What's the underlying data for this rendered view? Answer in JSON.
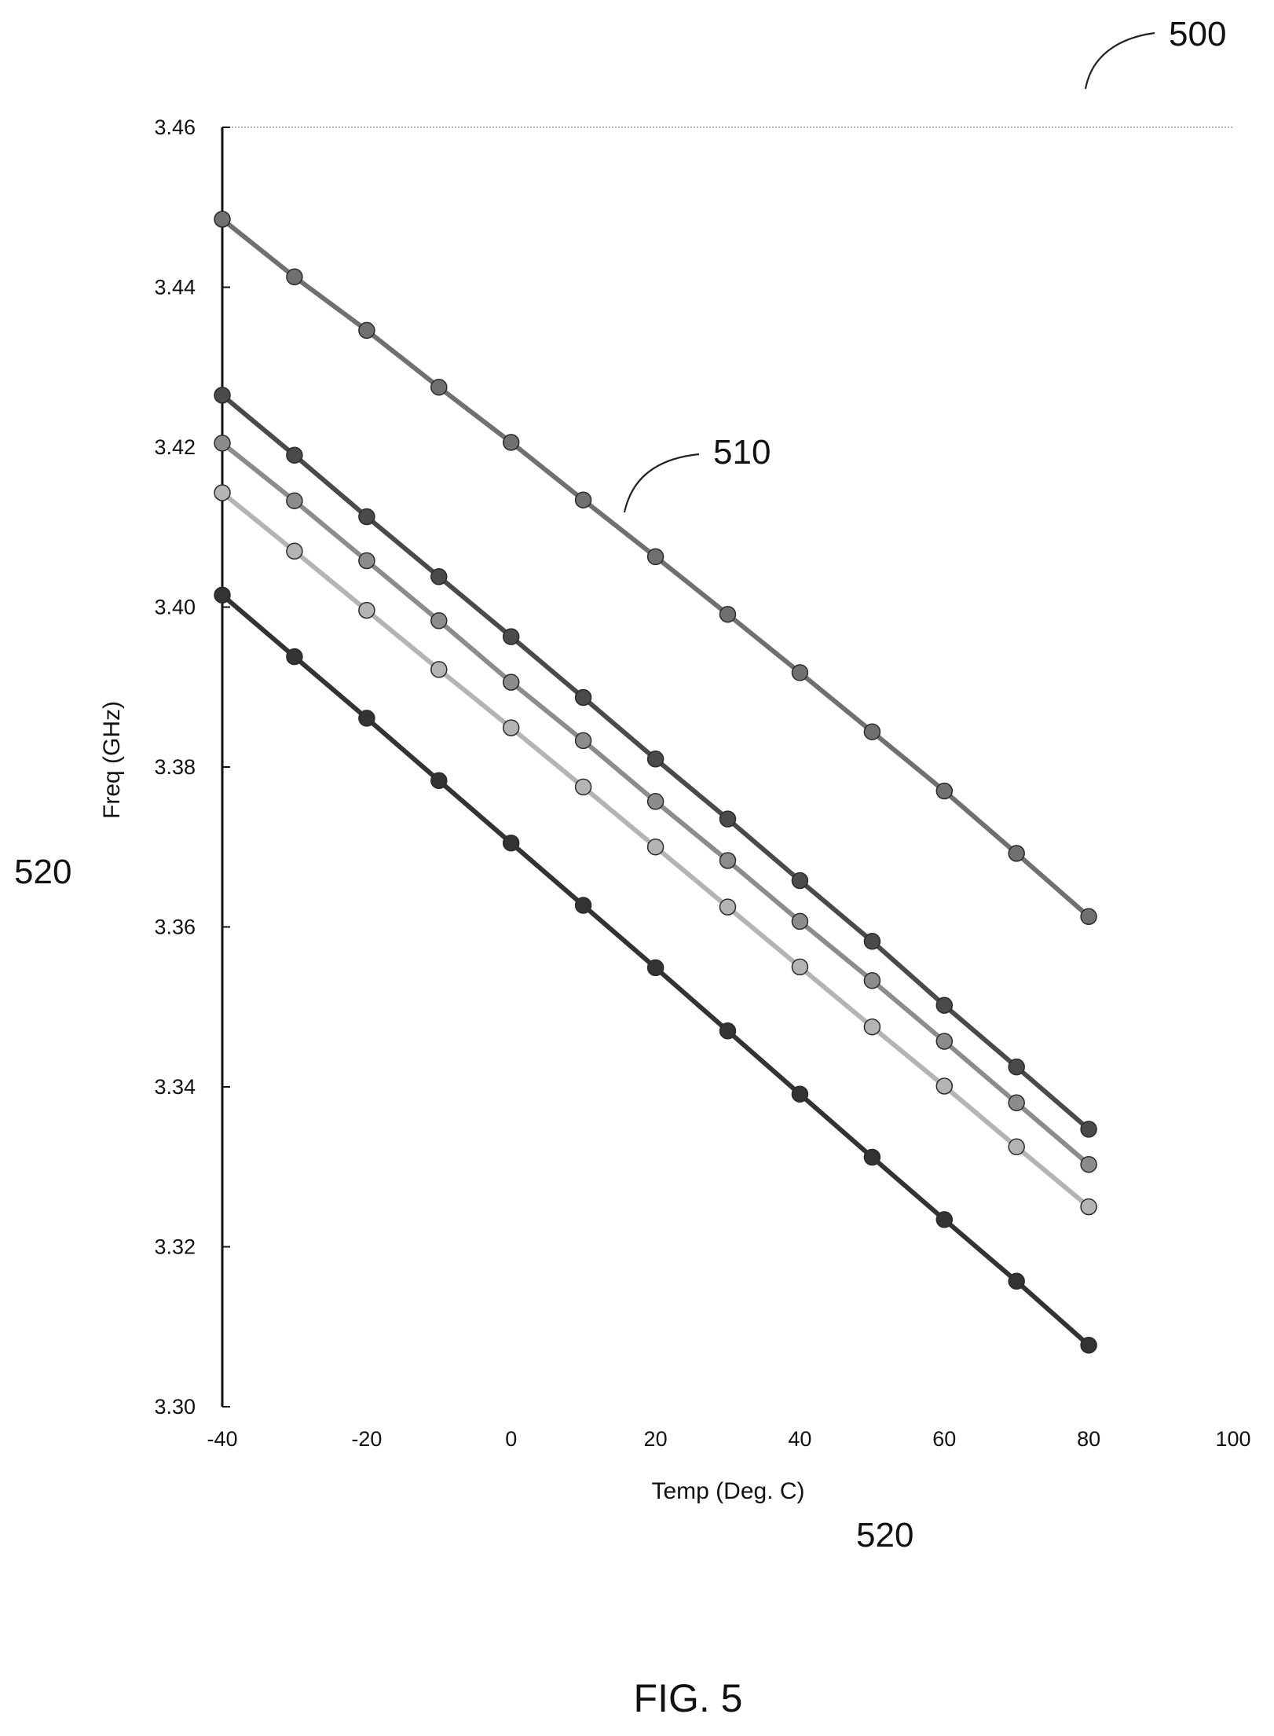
{
  "figure": {
    "caption": "FIG. 5",
    "ref_figure": "500",
    "ref_curve": "510",
    "ref_axis_left": "520",
    "ref_axis_bottom": "520"
  },
  "chart_data": {
    "type": "line",
    "title": "",
    "xlabel": "Temp (Deg. C)",
    "ylabel": "Freq (GHz)",
    "xlim": [
      -40,
      100
    ],
    "ylim": [
      3.3,
      3.46
    ],
    "xticks": [
      -40,
      -20,
      0,
      20,
      40,
      60,
      80,
      100
    ],
    "xtick_labels": [
      "-40",
      "-20",
      "0",
      "20",
      "40",
      "60",
      "80",
      "100"
    ],
    "yticks": [
      3.3,
      3.32,
      3.34,
      3.36,
      3.38,
      3.4,
      3.42,
      3.44,
      3.46
    ],
    "ytick_labels": [
      "3.30",
      "3.32",
      "3.34",
      "3.36",
      "3.38",
      "3.40",
      "3.42",
      "3.44",
      "3.46"
    ],
    "grid": "top border only",
    "legend": "none",
    "x": [
      -40,
      -30,
      -20,
      -10,
      0,
      10,
      20,
      30,
      40,
      50,
      60,
      70,
      80
    ],
    "series": [
      {
        "color": "#707070",
        "values": [
          3.4485,
          3.4413,
          3.4346,
          3.4275,
          3.4206,
          3.4134,
          3.4063,
          3.3991,
          3.3918,
          3.3844,
          3.377,
          3.3692,
          3.3613
        ]
      },
      {
        "color": "#4a4a4a",
        "values": [
          3.4265,
          3.419,
          3.4113,
          3.4038,
          3.3963,
          3.3887,
          3.381,
          3.3735,
          3.3658,
          3.3582,
          3.3502,
          3.3425,
          3.3347
        ]
      },
      {
        "color": "#8c8c8c",
        "values": [
          3.4205,
          3.4133,
          3.4058,
          3.3983,
          3.3906,
          3.3833,
          3.3757,
          3.3683,
          3.3607,
          3.3533,
          3.3457,
          3.338,
          3.3303
        ]
      },
      {
        "color": "#b4b4b4",
        "values": [
          3.4143,
          3.407,
          3.3996,
          3.3922,
          3.3849,
          3.3775,
          3.37,
          3.3625,
          3.355,
          3.3475,
          3.3401,
          3.3325,
          3.325
        ]
      },
      {
        "color": "#333333",
        "values": [
          3.4015,
          3.3938,
          3.3861,
          3.3783,
          3.3705,
          3.3627,
          3.3549,
          3.347,
          3.3391,
          3.3312,
          3.3234,
          3.3157,
          3.3077
        ]
      }
    ]
  }
}
